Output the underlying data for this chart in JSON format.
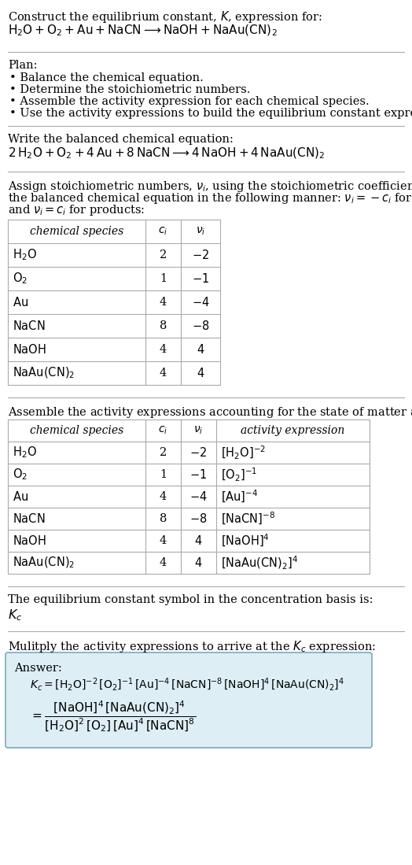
{
  "bg_color": "#ffffff",
  "text_color": "#000000",
  "title_line1": "Construct the equilibrium constant, $K$, expression for:",
  "title_line2": "$\\mathrm{H_2O + O_2 + Au + NaCN} \\longrightarrow \\mathrm{NaOH + NaAu(CN)_2}$",
  "plan_header": "Plan:",
  "plan_bullets": [
    "• Balance the chemical equation.",
    "• Determine the stoichiometric numbers.",
    "• Assemble the activity expression for each chemical species.",
    "• Use the activity expressions to build the equilibrium constant expression."
  ],
  "balanced_header": "Write the balanced chemical equation:",
  "balanced_eq": "$\\mathrm{2\\,H_2O + O_2 + 4\\,Au + 8\\,NaCN} \\longrightarrow \\mathrm{4\\,NaOH + 4\\,NaAu(CN)_2}$",
  "stoich_header_parts": [
    "Assign stoichiometric numbers, $\\nu_i$, using the stoichiometric coefficients, $c_i$, from",
    "the balanced chemical equation in the following manner: $\\nu_i = -c_i$ for reactants",
    "and $\\nu_i = c_i$ for products:"
  ],
  "table1_cols": [
    "chemical species",
    "$c_i$",
    "$\\nu_i$"
  ],
  "table1_data": [
    [
      "$\\mathrm{H_2O}$",
      "2",
      "$-2$"
    ],
    [
      "$\\mathrm{O_2}$",
      "1",
      "$-1$"
    ],
    [
      "$\\mathrm{Au}$",
      "4",
      "$-4$"
    ],
    [
      "$\\mathrm{NaCN}$",
      "8",
      "$-8$"
    ],
    [
      "$\\mathrm{NaOH}$",
      "4",
      "$4$"
    ],
    [
      "$\\mathrm{NaAu(CN)_2}$",
      "4",
      "$4$"
    ]
  ],
  "activity_header": "Assemble the activity expressions accounting for the state of matter and $\\nu_i$:",
  "table2_cols": [
    "chemical species",
    "$c_i$",
    "$\\nu_i$",
    "activity expression"
  ],
  "table2_data": [
    [
      "$\\mathrm{H_2O}$",
      "2",
      "$-2$",
      "$[\\mathrm{H_2O}]^{-2}$"
    ],
    [
      "$\\mathrm{O_2}$",
      "1",
      "$-1$",
      "$[\\mathrm{O_2}]^{-1}$"
    ],
    [
      "$\\mathrm{Au}$",
      "4",
      "$-4$",
      "$[\\mathrm{Au}]^{-4}$"
    ],
    [
      "$\\mathrm{NaCN}$",
      "8",
      "$-8$",
      "$[\\mathrm{NaCN}]^{-8}$"
    ],
    [
      "$\\mathrm{NaOH}$",
      "4",
      "$4$",
      "$[\\mathrm{NaOH}]^{4}$"
    ],
    [
      "$\\mathrm{NaAu(CN)_2}$",
      "4",
      "$4$",
      "$[\\mathrm{NaAu(CN)_2}]^{4}$"
    ]
  ],
  "kc_header": "The equilibrium constant symbol in the concentration basis is:",
  "kc_symbol": "$K_c$",
  "multiply_header": "Mulitply the activity expressions to arrive at the $K_c$ expression:",
  "answer_label": "Answer:",
  "answer_line1": "$K_c = [\\mathrm{H_2O}]^{-2}\\,[\\mathrm{O_2}]^{-1}\\,[\\mathrm{Au}]^{-4}\\,[\\mathrm{NaCN}]^{-8}\\,[\\mathrm{NaOH}]^{4}\\,[\\mathrm{NaAu(CN)_2}]^{4}$",
  "answer_line2_lhs": "$= \\dfrac{[\\mathrm{NaOH}]^{4}\\,[\\mathrm{NaAu(CN)_2}]^{4}}{[\\mathrm{H_2O}]^{2}\\,[\\mathrm{O_2}]\\,[\\mathrm{Au}]^{4}\\,[\\mathrm{NaCN}]^{8}}$",
  "answer_box_color": "#deeef5",
  "answer_box_border": "#7aaabb",
  "font_size": 10.5,
  "line_color": "#aaaaaa",
  "table_line_color": "#aaaaaa"
}
